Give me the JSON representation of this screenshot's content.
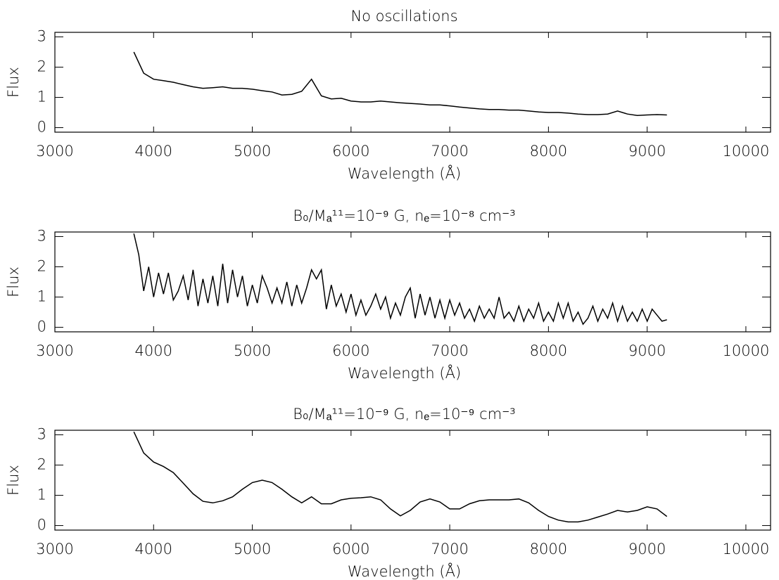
{
  "chart_data": [
    {
      "type": "line",
      "title": "No oscillations",
      "x_label": "Wavelength (Å)",
      "y_label": "Flux",
      "color": "#000000",
      "xlim": [
        3000,
        10250
      ],
      "ylim": [
        -0.15,
        3.15
      ],
      "xticks": [
        3000,
        4000,
        5000,
        6000,
        7000,
        8000,
        9000,
        10000
      ],
      "yticks": [
        0,
        1,
        2,
        3
      ],
      "x": [
        3800,
        3900,
        4000,
        4100,
        4200,
        4300,
        4400,
        4500,
        4600,
        4700,
        4800,
        4900,
        5000,
        5100,
        5200,
        5300,
        5400,
        5500,
        5600,
        5700,
        5800,
        5900,
        6000,
        6100,
        6200,
        6300,
        6400,
        6500,
        6600,
        6700,
        6800,
        6900,
        7000,
        7100,
        7200,
        7300,
        7400,
        7500,
        7600,
        7700,
        7800,
        7900,
        8000,
        8100,
        8200,
        8300,
        8400,
        8500,
        8600,
        8700,
        8800,
        8900,
        9000,
        9100,
        9200
      ],
      "values": [
        2.5,
        1.8,
        1.6,
        1.55,
        1.5,
        1.42,
        1.35,
        1.3,
        1.32,
        1.35,
        1.3,
        1.3,
        1.27,
        1.22,
        1.18,
        1.08,
        1.1,
        1.2,
        1.6,
        1.05,
        0.95,
        0.97,
        0.88,
        0.85,
        0.85,
        0.88,
        0.85,
        0.82,
        0.8,
        0.78,
        0.75,
        0.75,
        0.72,
        0.68,
        0.65,
        0.62,
        0.6,
        0.6,
        0.58,
        0.58,
        0.55,
        0.52,
        0.5,
        0.5,
        0.48,
        0.45,
        0.43,
        0.43,
        0.45,
        0.55,
        0.45,
        0.4,
        0.42,
        0.43,
        0.42
      ]
    },
    {
      "type": "line",
      "title": "B₀/Mₐ¹¹=10⁻⁹ G, nₑ=10⁻⁸ cm⁻³",
      "x_label": "Wavelength (Å)",
      "y_label": "Flux",
      "color": "#000000",
      "xlim": [
        3000,
        10250
      ],
      "ylim": [
        -0.15,
        3.15
      ],
      "xticks": [
        3000,
        4000,
        5000,
        6000,
        7000,
        8000,
        9000,
        10000
      ],
      "yticks": [
        0,
        1,
        2,
        3
      ],
      "x": [
        3800,
        3850,
        3900,
        3950,
        4000,
        4050,
        4100,
        4150,
        4200,
        4250,
        4300,
        4350,
        4400,
        4450,
        4500,
        4550,
        4600,
        4650,
        4700,
        4750,
        4800,
        4850,
        4900,
        4950,
        5000,
        5050,
        5100,
        5150,
        5200,
        5250,
        5300,
        5350,
        5400,
        5450,
        5500,
        5550,
        5600,
        5650,
        5700,
        5750,
        5800,
        5850,
        5900,
        5950,
        6000,
        6050,
        6100,
        6150,
        6200,
        6250,
        6300,
        6350,
        6400,
        6450,
        6500,
        6550,
        6600,
        6650,
        6700,
        6750,
        6800,
        6850,
        6900,
        6950,
        7000,
        7050,
        7100,
        7150,
        7200,
        7250,
        7300,
        7350,
        7400,
        7450,
        7500,
        7550,
        7600,
        7650,
        7700,
        7750,
        7800,
        7850,
        7900,
        7950,
        8000,
        8050,
        8100,
        8150,
        8200,
        8250,
        8300,
        8350,
        8400,
        8450,
        8500,
        8550,
        8600,
        8650,
        8700,
        8750,
        8800,
        8850,
        8900,
        8950,
        9000,
        9050,
        9100,
        9150,
        9200
      ],
      "values": [
        3.1,
        2.4,
        1.2,
        2.0,
        1.0,
        1.8,
        1.1,
        1.8,
        0.9,
        1.2,
        1.7,
        0.9,
        1.9,
        0.7,
        1.6,
        0.8,
        1.7,
        0.7,
        2.1,
        0.8,
        1.9,
        1.0,
        1.7,
        0.7,
        1.4,
        0.8,
        1.7,
        1.3,
        0.8,
        1.3,
        0.8,
        1.5,
        0.7,
        1.4,
        0.8,
        1.3,
        1.9,
        1.6,
        1.9,
        0.6,
        1.4,
        0.7,
        1.1,
        0.5,
        1.1,
        0.4,
        0.9,
        0.4,
        0.7,
        1.1,
        0.6,
        1.0,
        0.3,
        0.8,
        0.4,
        1.0,
        1.3,
        0.3,
        1.1,
        0.4,
        1.0,
        0.3,
        0.9,
        0.3,
        0.9,
        0.4,
        0.8,
        0.3,
        0.6,
        0.2,
        0.7,
        0.3,
        0.6,
        0.3,
        1.0,
        0.3,
        0.5,
        0.2,
        0.7,
        0.2,
        0.6,
        0.3,
        0.8,
        0.2,
        0.5,
        0.2,
        0.8,
        0.3,
        0.8,
        0.2,
        0.5,
        0.1,
        0.3,
        0.7,
        0.2,
        0.6,
        0.3,
        0.8,
        0.2,
        0.7,
        0.2,
        0.5,
        0.2,
        0.6,
        0.2,
        0.6,
        0.4,
        0.2,
        0.25
      ]
    },
    {
      "type": "line",
      "title": "B₀/Mₐ¹¹=10⁻⁹ G, nₑ=10⁻⁹ cm⁻³",
      "x_label": "Wavelength (Å)",
      "y_label": "Flux",
      "color": "#000000",
      "xlim": [
        3000,
        10250
      ],
      "ylim": [
        -0.15,
        3.15
      ],
      "xticks": [
        3000,
        4000,
        5000,
        6000,
        7000,
        8000,
        9000,
        10000
      ],
      "yticks": [
        0,
        1,
        2,
        3
      ],
      "x": [
        3800,
        3900,
        4000,
        4100,
        4200,
        4300,
        4400,
        4500,
        4600,
        4700,
        4800,
        4900,
        5000,
        5100,
        5200,
        5300,
        5400,
        5500,
        5600,
        5700,
        5800,
        5900,
        6000,
        6100,
        6200,
        6300,
        6400,
        6500,
        6600,
        6700,
        6800,
        6900,
        7000,
        7100,
        7200,
        7300,
        7400,
        7500,
        7600,
        7700,
        7800,
        7900,
        8000,
        8100,
        8200,
        8300,
        8400,
        8500,
        8600,
        8700,
        8800,
        8900,
        9000,
        9100,
        9200
      ],
      "values": [
        3.1,
        2.4,
        2.1,
        1.95,
        1.75,
        1.4,
        1.05,
        0.8,
        0.75,
        0.82,
        0.95,
        1.2,
        1.42,
        1.5,
        1.42,
        1.2,
        0.95,
        0.75,
        0.95,
        0.72,
        0.72,
        0.85,
        0.9,
        0.92,
        0.95,
        0.85,
        0.55,
        0.32,
        0.5,
        0.78,
        0.88,
        0.78,
        0.55,
        0.55,
        0.72,
        0.82,
        0.85,
        0.85,
        0.85,
        0.88,
        0.75,
        0.5,
        0.3,
        0.18,
        0.12,
        0.12,
        0.18,
        0.28,
        0.38,
        0.5,
        0.45,
        0.5,
        0.62,
        0.55,
        0.3
      ]
    }
  ]
}
